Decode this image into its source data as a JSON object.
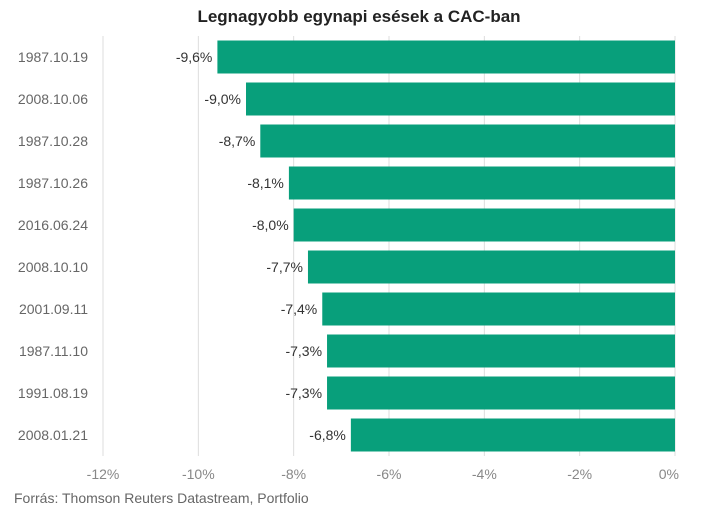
{
  "chart_data": {
    "type": "bar",
    "orientation": "horizontal",
    "title": "Legnagyobb egynapi esések a CAC-ban",
    "categories": [
      "1987.10.19",
      "2008.10.06",
      "1987.10.28",
      "1987.10.26",
      "2016.06.24",
      "2008.10.10",
      "2001.09.11",
      "1987.11.10",
      "1991.08.19",
      "2008.01.21"
    ],
    "values": [
      -9.6,
      -9.0,
      -8.7,
      -8.1,
      -8.0,
      -7.7,
      -7.4,
      -7.3,
      -7.3,
      -6.8
    ],
    "value_labels": [
      "-9,6%",
      "-9,0%",
      "-8,7%",
      "-8,1%",
      "-8,0%",
      "-7,7%",
      "-7,4%",
      "-7,3%",
      "-7,3%",
      "-6,8%"
    ],
    "xlim": [
      -12,
      0
    ],
    "x_ticks": [
      -12,
      -10,
      -8,
      -6,
      -4,
      -2,
      0
    ],
    "x_tick_labels": [
      "-12%",
      "-10%",
      "-8%",
      "-6%",
      "-4%",
      "-2%",
      "0%"
    ],
    "grid": true,
    "bar_color": "#089f7b",
    "grid_color": "#dddddd"
  },
  "source": "Forrás: Thomson Reuters Datastream, Portfolio"
}
